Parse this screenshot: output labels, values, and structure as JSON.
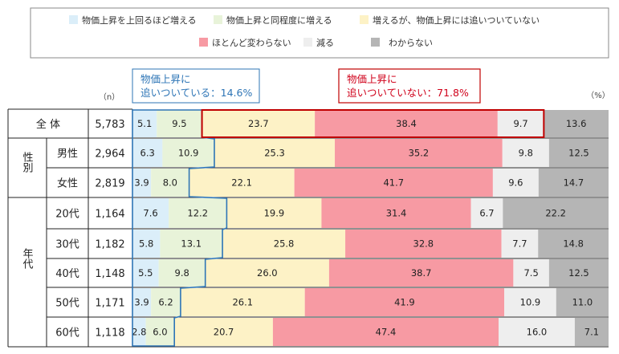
{
  "legend": [
    {
      "label": "物価上昇を上回るほど増える",
      "color": "#dbeef9"
    },
    {
      "label": "物価上昇と同程度に増える",
      "color": "#e8f3d9"
    },
    {
      "label": "増えるが、物価上昇には追いついていない",
      "color": "#fdf2c6"
    },
    {
      "label": "ほとんど変わらない",
      "color": "#f79aa3"
    },
    {
      "label": "減る",
      "color": "#eeeeee"
    },
    {
      "label": "わからない",
      "color": "#b5b5b5"
    }
  ],
  "unit_n": "（n）",
  "unit_pct": "（%）",
  "callouts": {
    "keeping_up": {
      "line1": "物価上昇に",
      "line2": "追いついている：14.6%",
      "color": "#2e75b6"
    },
    "not_keeping_up": {
      "line1": "物価上昇に",
      "line2": "追いついていない：71.8%",
      "color": "#d0021b"
    }
  },
  "groups": [
    {
      "label": "全 体"
    },
    {
      "label": "性別"
    },
    {
      "label": "年代"
    }
  ],
  "chart_data": {
    "type": "bar",
    "orientation": "horizontal-stacked-100",
    "series": [
      {
        "name": "物価上昇を上回るほど増える",
        "color": "#dbeef9"
      },
      {
        "name": "物価上昇と同程度に増える",
        "color": "#e8f3d9"
      },
      {
        "name": "増えるが、物価上昇には追いついていない",
        "color": "#fdf2c6"
      },
      {
        "name": "ほとんど変わらない",
        "color": "#f79aa3"
      },
      {
        "name": "減る",
        "color": "#eeeeee"
      },
      {
        "name": "わからない",
        "color": "#b5b5b5"
      }
    ],
    "rows": [
      {
        "group": "全 体",
        "label": "",
        "n": "5,783",
        "values": [
          5.1,
          9.5,
          23.7,
          38.4,
          9.7,
          13.6
        ]
      },
      {
        "group": "性別",
        "label": "男性",
        "n": "2,964",
        "values": [
          6.3,
          10.9,
          25.3,
          35.2,
          9.8,
          12.5
        ]
      },
      {
        "group": "性別",
        "label": "女性",
        "n": "2,819",
        "values": [
          3.9,
          8.0,
          22.1,
          41.7,
          9.6,
          14.7
        ]
      },
      {
        "group": "年代",
        "label": "20代",
        "n": "1,164",
        "values": [
          7.6,
          12.2,
          19.9,
          31.4,
          6.7,
          22.2
        ]
      },
      {
        "group": "年代",
        "label": "30代",
        "n": "1,182",
        "values": [
          5.8,
          13.1,
          25.8,
          32.8,
          7.7,
          14.8
        ]
      },
      {
        "group": "年代",
        "label": "40代",
        "n": "1,148",
        "values": [
          5.5,
          9.8,
          26.0,
          38.7,
          7.5,
          12.5
        ]
      },
      {
        "group": "年代",
        "label": "50代",
        "n": "1,171",
        "values": [
          3.9,
          6.2,
          26.1,
          41.9,
          10.9,
          11.0
        ]
      },
      {
        "group": "年代",
        "label": "60代",
        "n": "1,118",
        "values": [
          2.8,
          6.0,
          20.7,
          47.4,
          16.0,
          7.1
        ]
      }
    ],
    "xlim": [
      0,
      100
    ]
  }
}
